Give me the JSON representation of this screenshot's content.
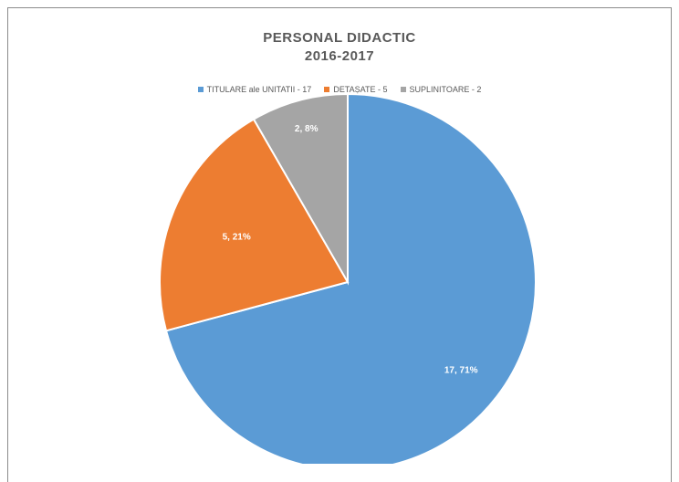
{
  "chart_data": {
    "type": "pie",
    "title_line1": "PERSONAL DIDACTIC",
    "title_line2": "2016-2017",
    "legend_position": "top",
    "slices": [
      {
        "label": "TITULARE ale UNITATII - 17",
        "value": 17,
        "data_label": "17, 71%",
        "color": "#5b9bd5"
      },
      {
        "label": "DETAȘATE - 5",
        "value": 5,
        "data_label": "5, 21%",
        "color": "#ed7d31"
      },
      {
        "label": "SUPLINITOARE - 2",
        "value": 2,
        "data_label": "2, 8%",
        "color": "#a5a5a5"
      }
    ]
  }
}
